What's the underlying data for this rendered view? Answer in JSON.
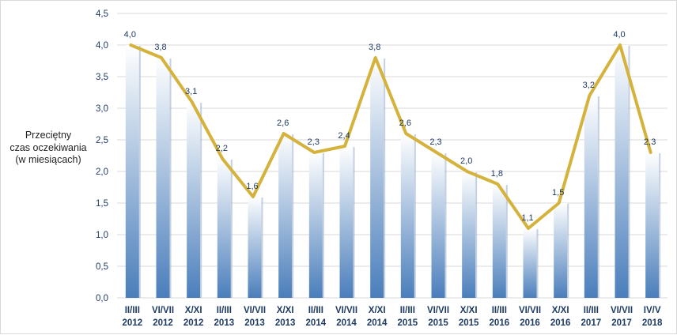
{
  "chart_data": {
    "type": "bar",
    "title": "",
    "ylabel_lines": [
      "Przeciętny",
      "czas oczekiwania",
      "(w miesiącach)"
    ],
    "xlabel": "",
    "ylim": [
      0,
      4.5
    ],
    "ytick_step": 0.5,
    "ytick_labels": [
      "0,0",
      "0,5",
      "1,0",
      "1,5",
      "2,0",
      "2,5",
      "3,0",
      "3,5",
      "4,0",
      "4,5"
    ],
    "grid": true,
    "legend": "none",
    "categories": [
      [
        "II/III",
        "2012"
      ],
      [
        "VI/VII",
        "2012"
      ],
      [
        "X/XI",
        "2012"
      ],
      [
        "II/III",
        "2013"
      ],
      [
        "VI/VII",
        "2013"
      ],
      [
        "X/XI",
        "2013"
      ],
      [
        "II/III",
        "2014"
      ],
      [
        "VI/VII",
        "2014"
      ],
      [
        "X/XI",
        "2014"
      ],
      [
        "II/III",
        "2015"
      ],
      [
        "VI/VII",
        "2015"
      ],
      [
        "X/XI",
        "2015"
      ],
      [
        "II/III",
        "2016"
      ],
      [
        "VI/VII",
        "2016"
      ],
      [
        "X/XI",
        "2016"
      ],
      [
        "II/III",
        "2017"
      ],
      [
        "VI/VII",
        "2017"
      ],
      [
        "IV/V",
        "2018"
      ]
    ],
    "values": [
      4.0,
      3.8,
      3.1,
      2.2,
      1.6,
      2.6,
      2.3,
      2.4,
      3.8,
      2.6,
      2.3,
      2.0,
      1.8,
      1.1,
      1.5,
      3.2,
      4.0,
      2.3
    ],
    "value_labels": [
      "4,0",
      "3,8",
      "3,1",
      "2,2",
      "1,6",
      "2,6",
      "2,3",
      "2,4",
      "3,8",
      "2,6",
      "2,3",
      "2,0",
      "1,8",
      "1,1",
      "1,5",
      "3,2",
      "4,0",
      "2,3"
    ],
    "line_overlay": true,
    "colors": {
      "bar_top": "#ffffff",
      "bar_bottom": "#4a7ebb",
      "line": "#d4b23b",
      "grid": "#d9d9d9",
      "axis_text": "#1f3b64",
      "label_text": "#1f3b64"
    }
  }
}
